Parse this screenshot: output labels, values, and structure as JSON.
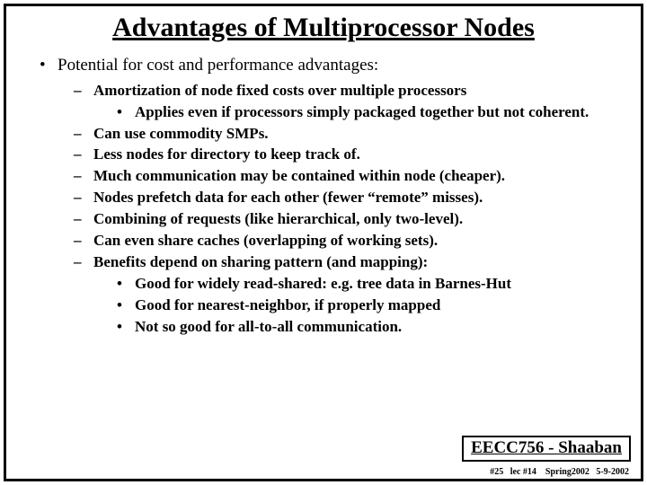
{
  "title": "Advantages of Multiprocessor Nodes",
  "main_point": "Potential for cost and performance advantages:",
  "items": [
    {
      "text": "Amortization of node fixed costs over multiple processors",
      "sub": [
        "Applies even if processors  simply packaged together but not coherent."
      ]
    },
    {
      "text": "Can use commodity SMPs."
    },
    {
      "text": "Less nodes for directory to keep track of."
    },
    {
      "text": "Much communication may be contained within node (cheaper)."
    },
    {
      "text": "Nodes prefetch data for each other (fewer “remote” misses)."
    },
    {
      "text": "Combining of requests (like hierarchical, only two-level)."
    },
    {
      "text": "Can even share caches (overlapping of working sets)."
    },
    {
      "text": "Benefits depend on sharing pattern (and mapping):",
      "sub": [
        "Good for widely read-shared: e.g. tree data in Barnes-Hut",
        "Good for nearest-neighbor, if properly mapped",
        "Not so good for all-to-all communication."
      ]
    }
  ],
  "footer": {
    "course": "EECC756 - Shaaban",
    "page": "#25",
    "lec": "lec #14",
    "term": "Spring2002",
    "date": "5-9-2002"
  },
  "bullets": {
    "lvl1": "•",
    "lvl2": "–",
    "lvl3": "•"
  }
}
